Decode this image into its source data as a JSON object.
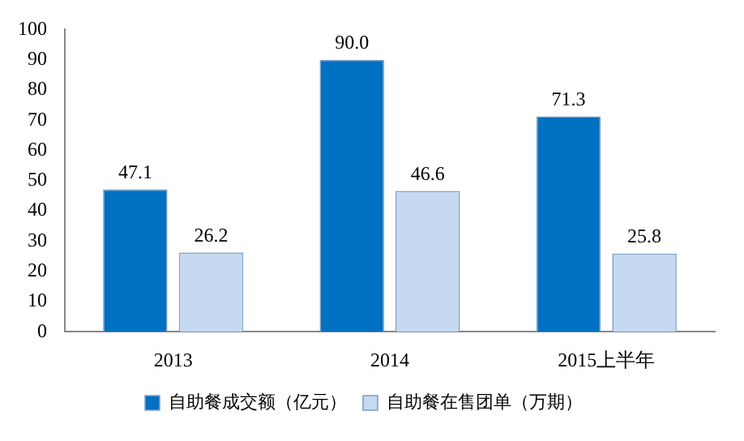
{
  "chart_data": {
    "type": "bar",
    "categories": [
      "2013",
      "2014",
      "2015上半年"
    ],
    "series": [
      {
        "name": "自助餐成交额（亿元）",
        "color": "#0070c0",
        "values": [
          47.1,
          90.0,
          71.3
        ],
        "value_labels": [
          "47.1",
          "90.0",
          "71.3"
        ]
      },
      {
        "name": "自助餐在售团单（万期）",
        "color": "#c6d9f1",
        "values": [
          26.2,
          46.6,
          25.8
        ],
        "value_labels": [
          "26.2",
          "46.6",
          "25.8"
        ]
      }
    ],
    "ylim": [
      0,
      100
    ],
    "yticks": [
      0,
      10,
      20,
      30,
      40,
      50,
      60,
      70,
      80,
      90,
      100
    ],
    "grid": false,
    "legend": "bottom"
  }
}
